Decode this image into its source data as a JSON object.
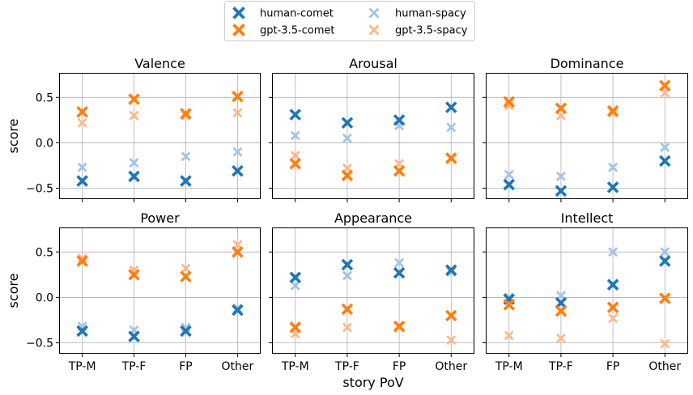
{
  "chart_data": {
    "type": "scatter",
    "layout": "2x3 grid of subplots sharing x and y axes",
    "xlabel": "story PoV",
    "ylabel": "score",
    "categories": [
      "TP-M",
      "TP-F",
      "FP",
      "Other"
    ],
    "ylim": [
      -0.62,
      0.77
    ],
    "yticks": [
      -0.5,
      0.0,
      0.5
    ],
    "ytick_labels": [
      "−0.5",
      "0.0",
      "0.5"
    ],
    "grid": true,
    "legend_position": "top-center",
    "legend": [
      {
        "name": "human-comet",
        "color": "#1f77b4",
        "marker": "x-bold"
      },
      {
        "name": "gpt-3.5-comet",
        "color": "#ff7f0e",
        "marker": "x-bold"
      },
      {
        "name": "human-spacy",
        "color": "#a3c4e6",
        "marker": "x-light"
      },
      {
        "name": "gpt-3.5-spacy",
        "color": "#fcb98b",
        "marker": "x-light"
      }
    ],
    "panels": [
      {
        "title": "Valence",
        "series": [
          {
            "name": "human-comet",
            "values": [
              -0.42,
              -0.37,
              -0.42,
              -0.31
            ]
          },
          {
            "name": "gpt-3.5-comet",
            "values": [
              0.34,
              0.48,
              0.32,
              0.51
            ]
          },
          {
            "name": "human-spacy",
            "values": [
              -0.27,
              -0.22,
              -0.15,
              -0.1
            ]
          },
          {
            "name": "gpt-3.5-spacy",
            "values": [
              0.22,
              0.3,
              0.3,
              0.33
            ]
          }
        ]
      },
      {
        "title": "Arousal",
        "series": [
          {
            "name": "human-comet",
            "values": [
              0.31,
              0.22,
              0.25,
              0.39
            ]
          },
          {
            "name": "gpt-3.5-comet",
            "values": [
              -0.23,
              -0.36,
              -0.31,
              -0.17
            ]
          },
          {
            "name": "human-spacy",
            "values": [
              0.08,
              0.05,
              0.19,
              0.17
            ]
          },
          {
            "name": "gpt-3.5-spacy",
            "values": [
              -0.14,
              -0.28,
              -0.23,
              -0.16
            ]
          }
        ]
      },
      {
        "title": "Dominance",
        "series": [
          {
            "name": "human-comet",
            "values": [
              -0.46,
              -0.53,
              -0.49,
              -0.2
            ]
          },
          {
            "name": "gpt-3.5-comet",
            "values": [
              0.45,
              0.38,
              0.35,
              0.63
            ]
          },
          {
            "name": "human-spacy",
            "values": [
              -0.35,
              -0.37,
              -0.27,
              -0.05
            ]
          },
          {
            "name": "gpt-3.5-spacy",
            "values": [
              0.41,
              0.3,
              0.33,
              0.55
            ]
          }
        ]
      },
      {
        "title": "Power",
        "series": [
          {
            "name": "human-comet",
            "values": [
              -0.37,
              -0.43,
              -0.37,
              -0.14
            ]
          },
          {
            "name": "gpt-3.5-comet",
            "values": [
              0.4,
              0.25,
              0.23,
              0.5
            ]
          },
          {
            "name": "human-spacy",
            "values": [
              -0.32,
              -0.36,
              -0.33,
              -0.12
            ]
          },
          {
            "name": "gpt-3.5-spacy",
            "values": [
              0.43,
              0.3,
              0.32,
              0.58
            ]
          }
        ]
      },
      {
        "title": "Appearance",
        "series": [
          {
            "name": "human-comet",
            "values": [
              0.22,
              0.36,
              0.27,
              0.3
            ]
          },
          {
            "name": "gpt-3.5-comet",
            "values": [
              -0.33,
              -0.13,
              -0.32,
              -0.2
            ]
          },
          {
            "name": "human-spacy",
            "values": [
              0.13,
              0.24,
              0.38,
              0.28
            ]
          },
          {
            "name": "gpt-3.5-spacy",
            "values": [
              -0.4,
              -0.33,
              -0.31,
              -0.47
            ]
          }
        ]
      },
      {
        "title": "Intellect",
        "series": [
          {
            "name": "human-comet",
            "values": [
              -0.02,
              -0.06,
              0.14,
              0.4
            ]
          },
          {
            "name": "gpt-3.5-comet",
            "values": [
              -0.08,
              -0.15,
              -0.11,
              -0.01
            ]
          },
          {
            "name": "human-spacy",
            "values": [
              0.0,
              0.02,
              0.5,
              0.5
            ]
          },
          {
            "name": "gpt-3.5-spacy",
            "values": [
              -0.42,
              -0.45,
              -0.23,
              -0.51
            ]
          }
        ]
      }
    ]
  }
}
